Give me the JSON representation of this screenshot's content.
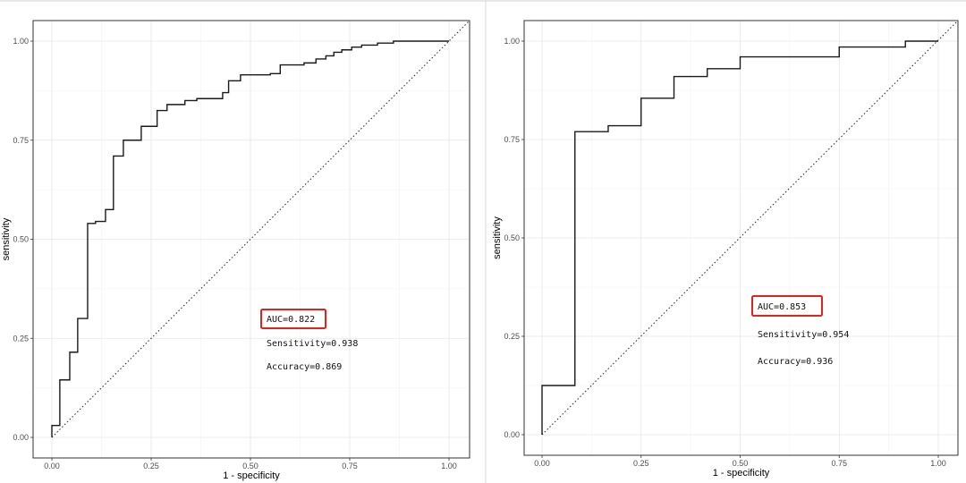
{
  "colors": {
    "curve": "#1a1a1a",
    "diagonal": "#333333",
    "highlight_box": "#e0241b",
    "panel_border": "#333333",
    "grid": "#e6e6e6"
  },
  "chart_data": [
    {
      "type": "line",
      "xlabel": "1 - specificity",
      "ylabel": "sensitivity",
      "xlim": [
        0,
        1
      ],
      "ylim": [
        0,
        1
      ],
      "xticks": [
        "0.00",
        "0.25",
        "0.50",
        "0.75",
        "1.00"
      ],
      "yticks": [
        "0.00",
        "0.25",
        "0.50",
        "0.75",
        "1.00"
      ],
      "grid": true,
      "diagonal_reference": true,
      "annotations": {
        "auc": "AUC=0.822",
        "sensitivity": "Sensitivity=0.938",
        "accuracy": "Accuracy=0.869"
      },
      "series": [
        {
          "x": [
            0.0,
            0.0,
            0.02,
            0.02,
            0.045,
            0.045,
            0.065,
            0.065,
            0.09,
            0.09,
            0.11,
            0.11,
            0.135,
            0.135,
            0.155,
            0.155,
            0.18,
            0.18,
            0.225,
            0.225,
            0.265,
            0.265,
            0.29,
            0.29,
            0.335,
            0.335,
            0.365,
            0.365,
            0.43,
            0.43,
            0.445,
            0.445,
            0.475,
            0.475,
            0.55,
            0.55,
            0.575,
            0.575,
            0.635,
            0.635,
            0.665,
            0.665,
            0.69,
            0.69,
            0.71,
            0.71,
            0.73,
            0.73,
            0.755,
            0.755,
            0.78,
            0.78,
            0.82,
            0.82,
            0.86,
            0.86,
            1.0
          ],
          "y": [
            0.0,
            0.03,
            0.03,
            0.145,
            0.145,
            0.215,
            0.215,
            0.3,
            0.3,
            0.54,
            0.54,
            0.545,
            0.545,
            0.575,
            0.575,
            0.71,
            0.71,
            0.75,
            0.75,
            0.785,
            0.785,
            0.825,
            0.825,
            0.84,
            0.84,
            0.85,
            0.85,
            0.855,
            0.855,
            0.87,
            0.87,
            0.9,
            0.9,
            0.915,
            0.915,
            0.918,
            0.918,
            0.94,
            0.94,
            0.945,
            0.945,
            0.955,
            0.955,
            0.963,
            0.963,
            0.972,
            0.972,
            0.978,
            0.978,
            0.985,
            0.985,
            0.99,
            0.99,
            0.995,
            0.995,
            1.0,
            1.0
          ]
        }
      ]
    },
    {
      "type": "line",
      "xlabel": "1 - specificity",
      "ylabel": "sensitivity",
      "xlim": [
        0,
        1
      ],
      "ylim": [
        0,
        1
      ],
      "xticks": [
        "0.00",
        "0.25",
        "0.50",
        "0.75",
        "1.00"
      ],
      "yticks": [
        "0.00",
        "0.25",
        "0.50",
        "0.75",
        "1.00"
      ],
      "grid": true,
      "diagonal_reference": true,
      "annotations": {
        "auc": "AUC=0.853",
        "sensitivity": "Sensitivity=0.954",
        "accuracy": "Accuracy=0.936"
      },
      "series": [
        {
          "x": [
            0.0,
            0.0,
            0.083,
            0.083,
            0.167,
            0.167,
            0.25,
            0.25,
            0.333,
            0.333,
            0.417,
            0.417,
            0.5,
            0.5,
            0.75,
            0.75,
            0.917,
            0.917,
            1.0
          ],
          "y": [
            0.0,
            0.125,
            0.125,
            0.77,
            0.77,
            0.785,
            0.785,
            0.855,
            0.855,
            0.91,
            0.91,
            0.93,
            0.93,
            0.96,
            0.96,
            0.985,
            0.985,
            1.0,
            1.0
          ]
        }
      ]
    }
  ]
}
